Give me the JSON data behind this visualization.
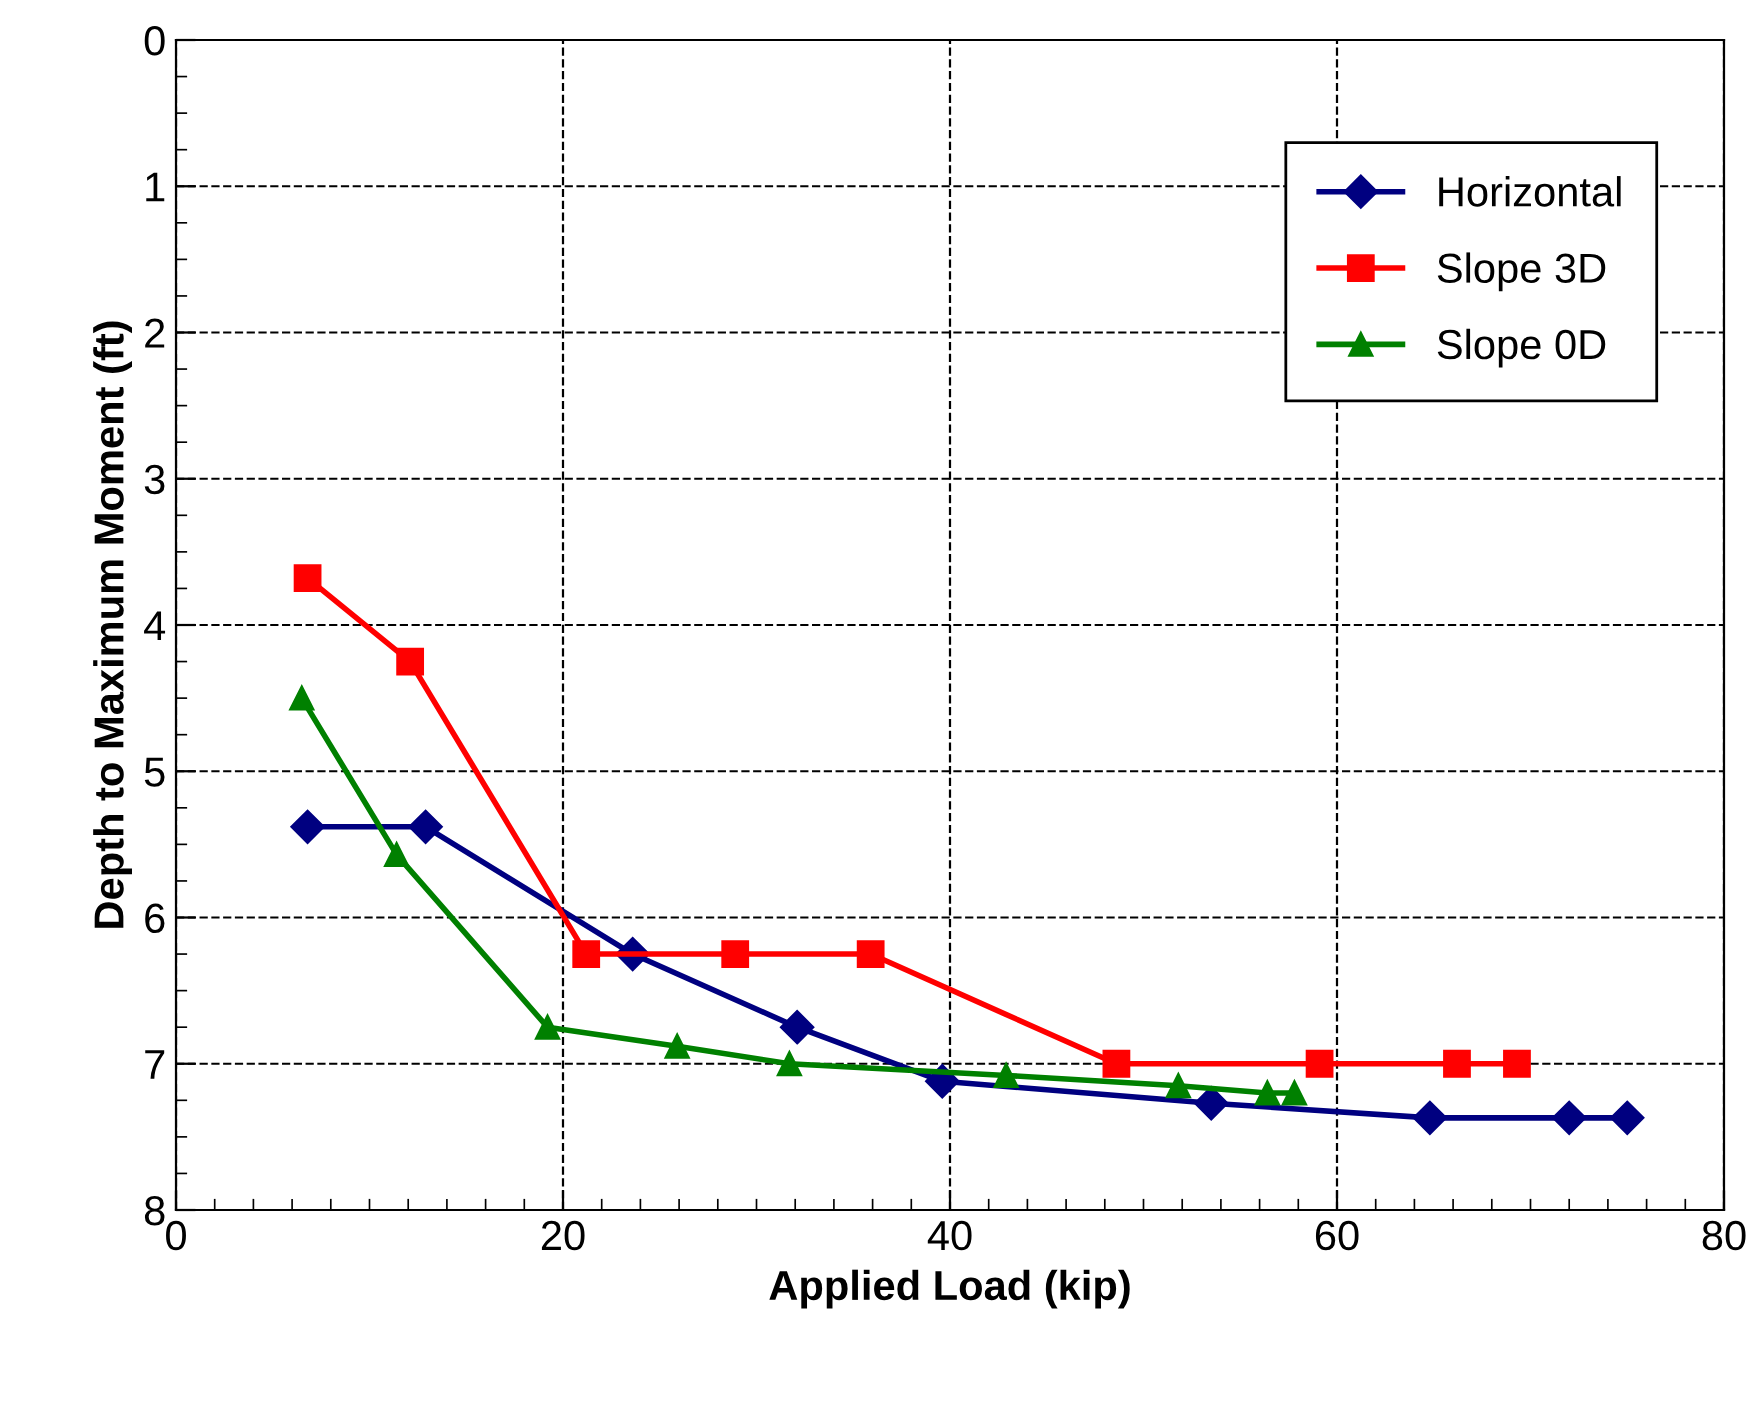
{
  "chart_data": {
    "type": "line",
    "xlabel": "Applied Load (kip)",
    "ylabel": "Depth to Maximum Moment (ft)",
    "xlim": [
      0,
      80
    ],
    "xticks": [
      0,
      20,
      40,
      60,
      80
    ],
    "ylim": [
      8,
      0
    ],
    "yticks": [
      0,
      1,
      2,
      3,
      4,
      5,
      6,
      7,
      8
    ],
    "grid": true,
    "legend": "top right",
    "line_style": "solid",
    "series": [
      {
        "name": "Horizontal",
        "color": "#000080",
        "marker": "diamond",
        "x": [
          6.8,
          12.9,
          23.6,
          32.1,
          39.6,
          53.5,
          64.8,
          72,
          75
        ],
        "values": [
          5.38,
          5.38,
          6.25,
          6.75,
          7.12,
          7.27,
          7.37,
          7.37,
          7.37
        ]
      },
      {
        "name": "Slope 3D",
        "color": "#ff0000",
        "marker": "square",
        "x": [
          6.8,
          12.1,
          21.2,
          28.9,
          35.9,
          48.6,
          59.1,
          66.2,
          69.3
        ],
        "values": [
          3.68,
          4.25,
          6.25,
          6.25,
          6.25,
          7.0,
          7.0,
          7.0,
          7.0
        ]
      },
      {
        "name": "Slope 0D",
        "color": "#008000",
        "marker": "triangle",
        "x": [
          6.5,
          11.4,
          19.2,
          25.9,
          31.7,
          42.9,
          51.8,
          56.4,
          57.8
        ],
        "values": [
          4.5,
          5.57,
          6.75,
          6.88,
          7.0,
          7.08,
          7.15,
          7.2,
          7.2
        ]
      }
    ]
  }
}
